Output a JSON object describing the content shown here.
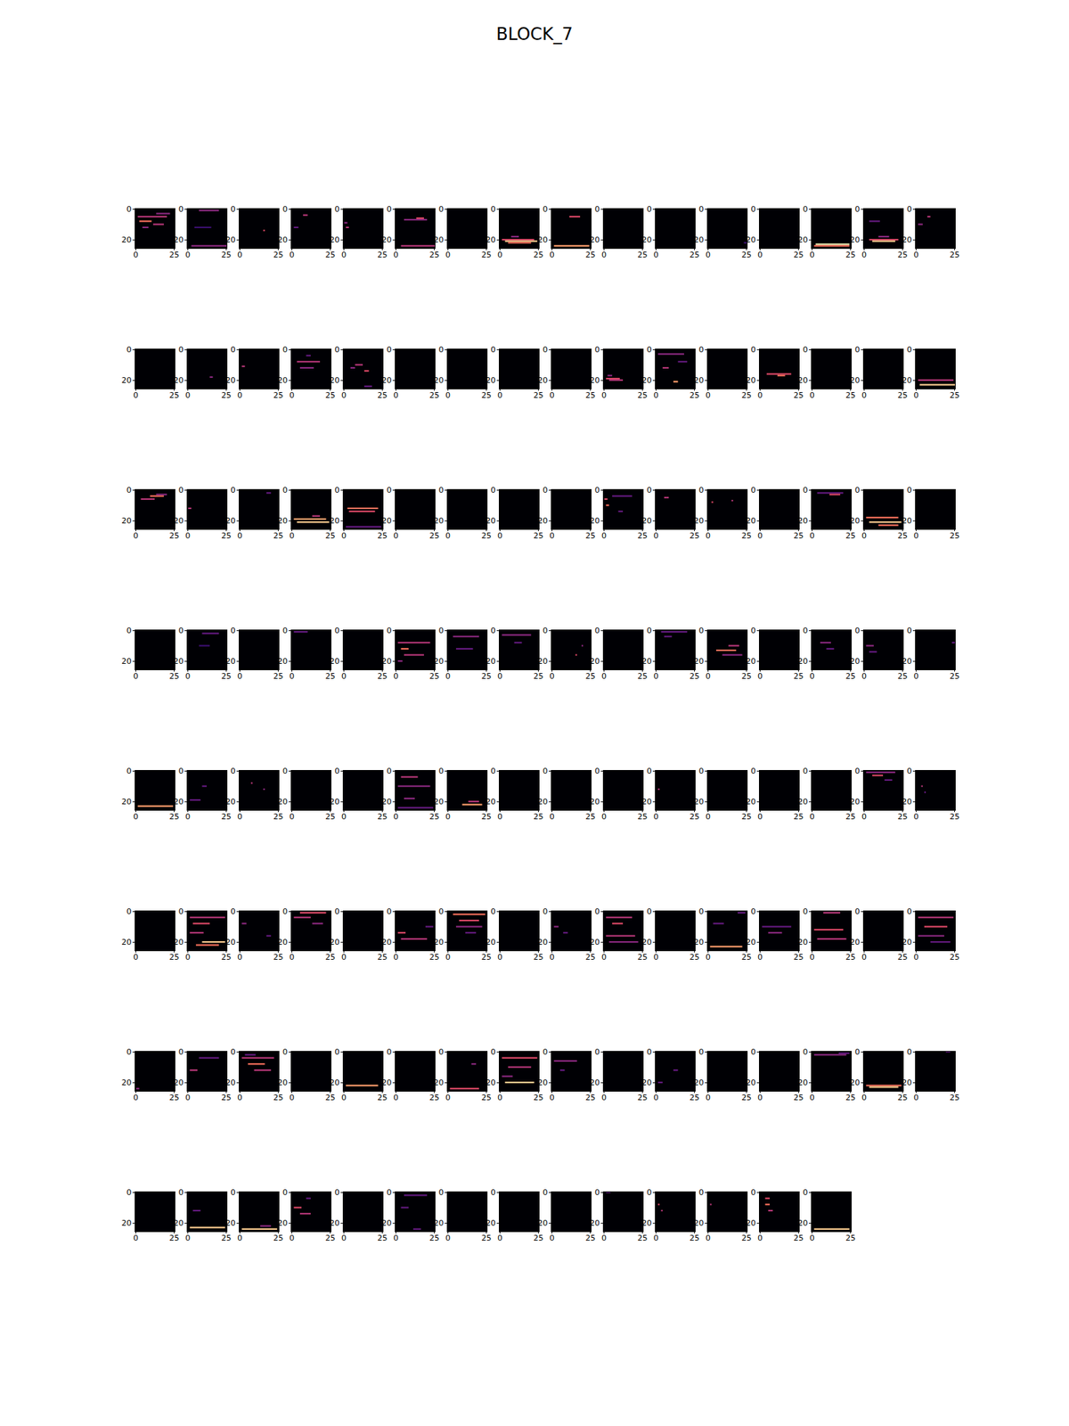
{
  "chart_data": {
    "type": "heatmap_grid",
    "title": "BLOCK_7",
    "color": "magma",
    "value_range": [
      0,
      1
    ],
    "xlim": [
      -0.5,
      25.5
    ],
    "ylim": [
      25.5,
      -0.5
    ],
    "xticks": [
      0,
      25
    ],
    "yticks": [
      0,
      20
    ],
    "maps": [
      [
        [
          5,
          2,
          20,
          0.5
        ],
        [
          8,
          3,
          10,
          0.7
        ],
        [
          10,
          12,
          18,
          0.5
        ],
        [
          12,
          5,
          8,
          0.4
        ],
        [
          3,
          14,
          22,
          0.4
        ]
      ],
      [
        [
          1,
          8,
          20,
          0.4
        ],
        [
          24,
          3,
          25,
          0.4
        ],
        [
          12,
          5,
          15,
          0.2
        ]
      ],
      [
        [
          14,
          16,
          16,
          0.6
        ]
      ],
      [
        [
          4,
          8,
          10,
          0.5
        ],
        [
          12,
          2,
          4,
          0.3
        ]
      ],
      [
        [
          9,
          1,
          2,
          0.4
        ],
        [
          12,
          2,
          3,
          0.5
        ]
      ],
      [
        [
          7,
          6,
          20,
          0.4
        ],
        [
          6,
          14,
          18,
          0.6
        ],
        [
          24,
          4,
          25,
          0.5
        ]
      ],
      [],
      [
        [
          20,
          2,
          22,
          0.6
        ],
        [
          21,
          4,
          24,
          0.9
        ],
        [
          22,
          6,
          20,
          0.7
        ],
        [
          18,
          8,
          12,
          0.4
        ]
      ],
      [
        [
          5,
          12,
          18,
          0.6
        ],
        [
          24,
          2,
          24,
          0.8
        ]
      ],
      [],
      [],
      [
        [
          22,
          24,
          25,
          0.2
        ]
      ],
      [],
      [
        [
          23,
          3,
          24,
          1.0
        ],
        [
          24,
          2,
          24,
          0.7
        ]
      ],
      [
        [
          20,
          4,
          22,
          0.6
        ],
        [
          21,
          6,
          20,
          0.9
        ],
        [
          18,
          10,
          16,
          0.4
        ],
        [
          8,
          4,
          10,
          0.3
        ]
      ],
      [
        [
          10,
          2,
          4,
          0.4
        ],
        [
          5,
          8,
          9,
          0.5
        ]
      ],
      [],
      [
        [
          18,
          15,
          16,
          0.4
        ]
      ],
      [
        [
          11,
          2,
          3,
          0.5
        ]
      ],
      [
        [
          8,
          4,
          18,
          0.5
        ],
        [
          12,
          6,
          14,
          0.4
        ],
        [
          4,
          10,
          12,
          0.3
        ]
      ],
      [
        [
          10,
          8,
          12,
          0.5
        ],
        [
          14,
          14,
          16,
          0.6
        ],
        [
          12,
          5,
          7,
          0.4
        ],
        [
          24,
          14,
          18,
          0.3
        ]
      ],
      [],
      [],
      [],
      [],
      [
        [
          19,
          2,
          10,
          0.6
        ],
        [
          20,
          4,
          12,
          0.5
        ],
        [
          17,
          3,
          5,
          0.4
        ]
      ],
      [
        [
          3,
          2,
          18,
          0.4
        ],
        [
          12,
          5,
          8,
          0.5
        ],
        [
          21,
          12,
          14,
          0.8
        ],
        [
          8,
          15,
          20,
          0.3
        ]
      ],
      [],
      [
        [
          16,
          5,
          20,
          0.6
        ],
        [
          17,
          12,
          16,
          0.7
        ]
      ],
      [],
      [],
      [
        [
          20,
          2,
          24,
          0.5
        ],
        [
          23,
          3,
          25,
          0.9
        ]
      ],
      [
        [
          4,
          10,
          18,
          0.7
        ],
        [
          6,
          4,
          12,
          0.5
        ],
        [
          3,
          14,
          20,
          0.4
        ]
      ],
      [
        [
          12,
          1,
          2,
          0.5
        ]
      ],
      [
        [
          2,
          18,
          20,
          0.3
        ]
      ],
      [
        [
          19,
          2,
          22,
          0.8
        ],
        [
          21,
          4,
          24,
          0.9
        ],
        [
          17,
          14,
          18,
          0.5
        ]
      ],
      [
        [
          12,
          3,
          22,
          0.7
        ],
        [
          14,
          4,
          20,
          0.6
        ],
        [
          24,
          2,
          24,
          0.3
        ]
      ],
      [],
      [],
      [],
      [],
      [
        [
          6,
          1,
          2,
          0.6
        ],
        [
          10,
          2,
          3,
          0.7
        ],
        [
          4,
          6,
          18,
          0.3
        ],
        [
          14,
          10,
          12,
          0.3
        ]
      ],
      [
        [
          5,
          6,
          8,
          0.5
        ]
      ],
      [
        [
          8,
          3,
          3,
          0.6
        ],
        [
          7,
          16,
          16,
          0.5
        ]
      ],
      [],
      [
        [
          2,
          4,
          20,
          0.3
        ],
        [
          3,
          12,
          18,
          0.6
        ]
      ],
      [
        [
          18,
          2,
          22,
          0.7
        ],
        [
          21,
          4,
          24,
          0.9
        ],
        [
          23,
          10,
          22,
          0.7
        ]
      ],
      [],
      [],
      [
        [
          2,
          10,
          20,
          0.3
        ],
        [
          10,
          8,
          14,
          0.2
        ]
      ],
      [],
      [
        [
          1,
          2,
          10,
          0.3
        ]
      ],
      [],
      [
        [
          8,
          2,
          22,
          0.5
        ],
        [
          12,
          4,
          8,
          0.7
        ],
        [
          16,
          6,
          18,
          0.5
        ],
        [
          20,
          2,
          4,
          0.4
        ]
      ],
      [
        [
          4,
          4,
          20,
          0.4
        ],
        [
          12,
          6,
          16,
          0.3
        ]
      ],
      [
        [
          3,
          2,
          20,
          0.4
        ],
        [
          8,
          10,
          14,
          0.3
        ]
      ],
      [
        [
          16,
          16,
          16,
          0.6
        ],
        [
          10,
          20,
          20,
          0.4
        ]
      ],
      [],
      [
        [
          1,
          4,
          20,
          0.3
        ],
        [
          4,
          6,
          10,
          0.3
        ]
      ],
      [
        [
          10,
          14,
          20,
          0.5
        ],
        [
          13,
          6,
          18,
          0.7
        ],
        [
          16,
          10,
          22,
          0.4
        ]
      ],
      [],
      [
        [
          8,
          6,
          12,
          0.4
        ],
        [
          12,
          10,
          14,
          0.3
        ]
      ],
      [
        [
          10,
          2,
          6,
          0.4
        ],
        [
          14,
          4,
          8,
          0.3
        ]
      ],
      [
        [
          8,
          24,
          25,
          0.3
        ]
      ],
      [
        [
          23,
          2,
          24,
          0.8
        ]
      ],
      [
        [
          19,
          2,
          8,
          0.3
        ],
        [
          10,
          10,
          12,
          0.3
        ]
      ],
      [
        [
          8,
          8,
          8,
          0.5
        ],
        [
          12,
          16,
          16,
          0.4
        ]
      ],
      [],
      [],
      [
        [
          4,
          4,
          14,
          0.5
        ],
        [
          10,
          2,
          22,
          0.4
        ],
        [
          18,
          6,
          12,
          0.4
        ],
        [
          24,
          2,
          24,
          0.3
        ]
      ],
      [
        [
          22,
          10,
          22,
          0.8
        ],
        [
          20,
          14,
          20,
          0.5
        ]
      ],
      [],
      [],
      [],
      [
        [
          12,
          2,
          2,
          0.5
        ]
      ],
      [],
      [],
      [],
      [
        [
          1,
          2,
          20,
          0.4
        ],
        [
          3,
          6,
          12,
          0.6
        ],
        [
          6,
          14,
          18,
          0.3
        ]
      ],
      [
        [
          10,
          4,
          4,
          0.5
        ],
        [
          14,
          6,
          6,
          0.3
        ]
      ],
      [],
      [
        [
          4,
          2,
          24,
          0.5
        ],
        [
          8,
          4,
          14,
          0.6
        ],
        [
          20,
          10,
          24,
          0.9
        ],
        [
          22,
          6,
          20,
          0.7
        ],
        [
          14,
          2,
          10,
          0.5
        ]
      ],
      [
        [
          8,
          2,
          4,
          0.4
        ],
        [
          16,
          18,
          20,
          0.3
        ]
      ],
      [
        [
          1,
          6,
          22,
          0.6
        ],
        [
          4,
          2,
          12,
          0.5
        ],
        [
          8,
          14,
          20,
          0.4
        ]
      ],
      [],
      [
        [
          14,
          2,
          6,
          0.6
        ],
        [
          18,
          4,
          20,
          0.5
        ],
        [
          10,
          20,
          24,
          0.3
        ]
      ],
      [
        [
          2,
          4,
          24,
          0.7
        ],
        [
          6,
          8,
          20,
          0.6
        ],
        [
          10,
          6,
          22,
          0.4
        ],
        [
          14,
          12,
          18,
          0.3
        ]
      ],
      [],
      [
        [
          10,
          2,
          4,
          0.4
        ],
        [
          14,
          8,
          10,
          0.3
        ]
      ],
      [
        [
          4,
          2,
          18,
          0.5
        ],
        [
          8,
          6,
          12,
          0.6
        ],
        [
          16,
          2,
          20,
          0.5
        ],
        [
          20,
          4,
          22,
          0.4
        ]
      ],
      [],
      [
        [
          23,
          2,
          22,
          0.8
        ],
        [
          8,
          4,
          10,
          0.3
        ],
        [
          1,
          20,
          24,
          0.3
        ]
      ],
      [
        [
          10,
          2,
          20,
          0.3
        ],
        [
          14,
          6,
          14,
          0.4
        ]
      ],
      [
        [
          1,
          8,
          18,
          0.5
        ],
        [
          12,
          2,
          20,
          0.6
        ],
        [
          18,
          4,
          22,
          0.5
        ]
      ],
      [],
      [
        [
          4,
          2,
          24,
          0.5
        ],
        [
          10,
          6,
          20,
          0.6
        ],
        [
          16,
          2,
          18,
          0.4
        ],
        [
          20,
          10,
          22,
          0.3
        ]
      ],
      [
        [
          24,
          1,
          2,
          0.4
        ]
      ],
      [
        [
          12,
          2,
          6,
          0.5
        ],
        [
          4,
          8,
          20,
          0.3
        ]
      ],
      [
        [
          4,
          2,
          22,
          0.5
        ],
        [
          8,
          6,
          16,
          0.7
        ],
        [
          12,
          10,
          20,
          0.5
        ],
        [
          2,
          4,
          10,
          0.3
        ]
      ],
      [],
      [
        [
          22,
          2,
          22,
          0.8
        ]
      ],
      [],
      [
        [
          24,
          2,
          20,
          0.6
        ],
        [
          8,
          16,
          18,
          0.4
        ]
      ],
      [
        [
          4,
          2,
          24,
          0.6
        ],
        [
          10,
          6,
          20,
          0.5
        ],
        [
          20,
          4,
          22,
          0.9
        ],
        [
          16,
          2,
          8,
          0.4
        ]
      ],
      [
        [
          6,
          2,
          16,
          0.4
        ],
        [
          12,
          6,
          8,
          0.3
        ]
      ],
      [],
      [
        [
          20,
          2,
          4,
          0.3
        ],
        [
          12,
          12,
          14,
          0.3
        ]
      ],
      [],
      [],
      [
        [
          2,
          2,
          22,
          0.4
        ],
        [
          1,
          18,
          24,
          0.3
        ]
      ],
      [
        [
          22,
          2,
          24,
          0.7
        ],
        [
          23,
          4,
          22,
          0.9
        ]
      ],
      [
        [
          0,
          20,
          22,
          0.3
        ]
      ],
      [],
      [
        [
          23,
          2,
          24,
          0.9
        ],
        [
          12,
          4,
          8,
          0.3
        ]
      ],
      [
        [
          24,
          2,
          24,
          0.9
        ],
        [
          22,
          14,
          20,
          0.4
        ]
      ],
      [
        [
          10,
          2,
          6,
          0.6
        ],
        [
          14,
          6,
          12,
          0.5
        ],
        [
          4,
          10,
          12,
          0.3
        ]
      ],
      [],
      [
        [
          2,
          6,
          20,
          0.3
        ],
        [
          10,
          4,
          8,
          0.3
        ],
        [
          24,
          12,
          16,
          0.3
        ]
      ],
      [],
      [],
      [],
      [
        [
          0,
          2,
          4,
          0.3
        ]
      ],
      [
        [
          8,
          2,
          2,
          0.6
        ],
        [
          12,
          4,
          4,
          0.5
        ]
      ],
      [
        [
          8,
          2,
          2,
          0.5
        ]
      ],
      [
        [
          4,
          4,
          6,
          0.6
        ],
        [
          8,
          4,
          6,
          0.7
        ],
        [
          12,
          6,
          8,
          0.5
        ]
      ],
      [
        [
          24,
          2,
          24,
          0.9
        ]
      ]
    ]
  }
}
